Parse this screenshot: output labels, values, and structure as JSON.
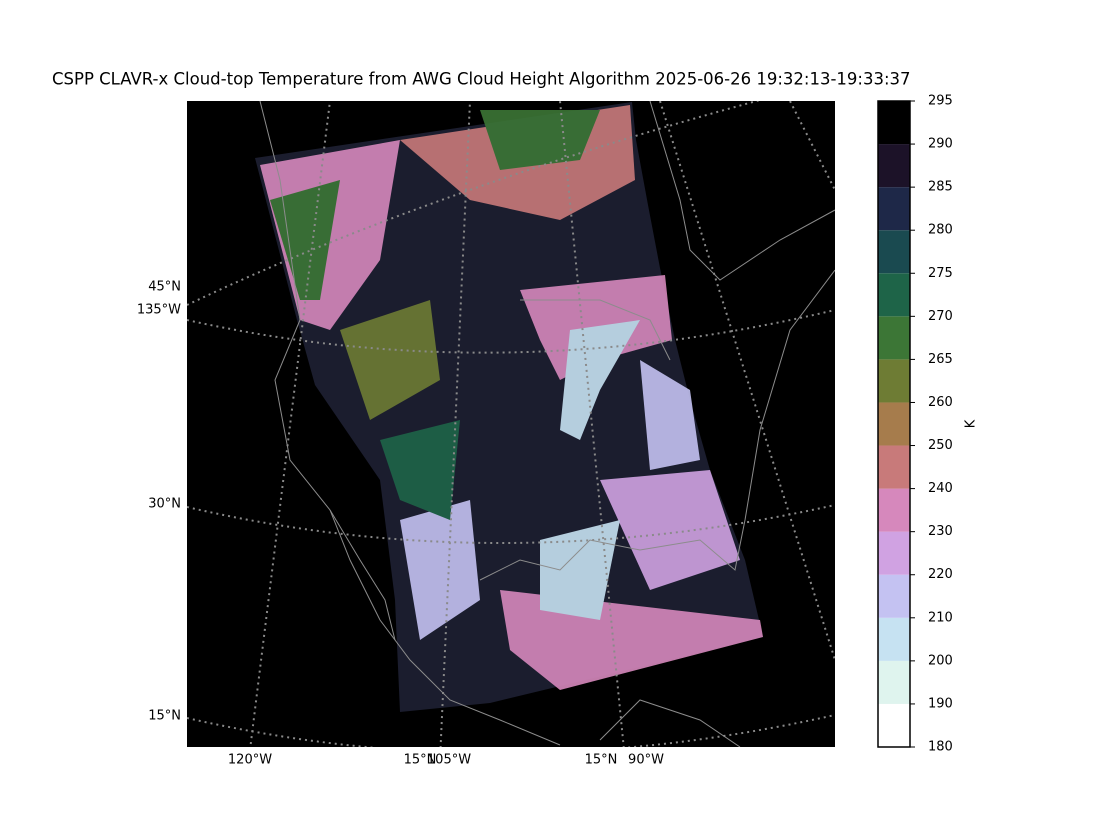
{
  "map": {
    "title": "CSPP CLAVR-x Cloud-top Temperature from AWG Cloud Height Algorithm 2025-06-26 19:32:13-19:33:37",
    "lat_labels": [
      "45°N",
      "30°N",
      "15°N"
    ],
    "lon_labels": [
      "135°W",
      "120°W",
      "105°W",
      "90°W"
    ],
    "bottom_lat_labels": [
      "15°N",
      "15°N"
    ],
    "colorbar": {
      "label": "K",
      "ticks": [
        180,
        190,
        200,
        210,
        220,
        230,
        240,
        250,
        260,
        265,
        270,
        275,
        280,
        285,
        290,
        295
      ],
      "colors": [
        "#ffffff",
        "#dff4ee",
        "#c6e2f2",
        "#c4c2f2",
        "#d0a2e2",
        "#d688bc",
        "#c87a7a",
        "#a67c4c",
        "#6e7c34",
        "#3c7636",
        "#1e6448",
        "#1a4a50",
        "#1e2848",
        "#1c1228",
        "#000000"
      ]
    }
  }
}
